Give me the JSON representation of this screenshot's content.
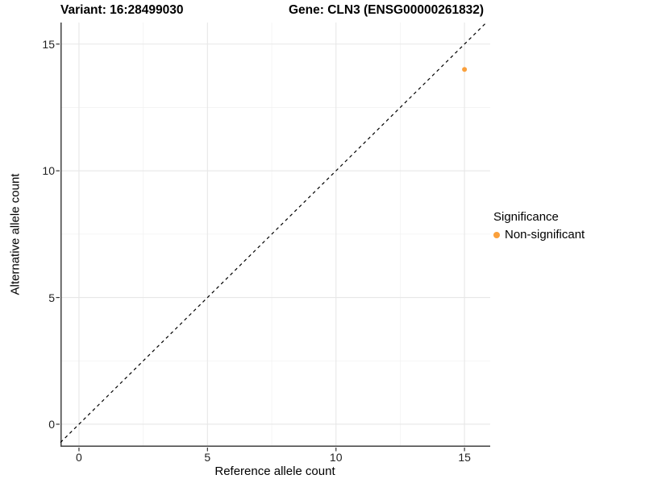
{
  "titles": {
    "variant": "Variant: 16:28499030",
    "gene": "Gene: CLN3 (ENSG00000261832)"
  },
  "axes": {
    "x": {
      "label": "Reference allele count"
    },
    "y": {
      "label": "Alternative allele count"
    }
  },
  "legend": {
    "title": "Significance",
    "items": [
      {
        "label": "Non-significant",
        "color": "#FAA03C"
      }
    ]
  },
  "colors": {
    "point": "#FAA03C",
    "grid_major": "#E7E7E7",
    "grid_minor": "#F1F1F1",
    "axis_line": "#404040",
    "tick_mark": "#333333",
    "reference_line": "#000000",
    "background": "#FFFFFF"
  },
  "chart_data": {
    "type": "scatter",
    "title": "Variant: 16:28499030    Gene: CLN3 (ENSG00000261832)",
    "xlabel": "Reference allele count",
    "ylabel": "Alternative allele count",
    "xlim": [
      -0.72,
      16.0
    ],
    "ylim": [
      -0.89,
      15.85
    ],
    "x_ticks": [
      0,
      5,
      10,
      15
    ],
    "y_ticks": [
      0,
      5,
      10,
      15
    ],
    "x_minor_ticks": [
      2.5,
      7.5,
      12.5
    ],
    "y_minor_ticks": [
      2.5,
      7.5,
      12.5
    ],
    "grid": true,
    "legend_position": "right",
    "legend_title": "Significance",
    "series": [
      {
        "name": "Non-significant",
        "color": "#FAA03C",
        "points": [
          [
            15,
            14
          ]
        ]
      }
    ],
    "reference_line": {
      "type": "abline",
      "slope": 1,
      "intercept": 0,
      "style": "dashed"
    }
  }
}
